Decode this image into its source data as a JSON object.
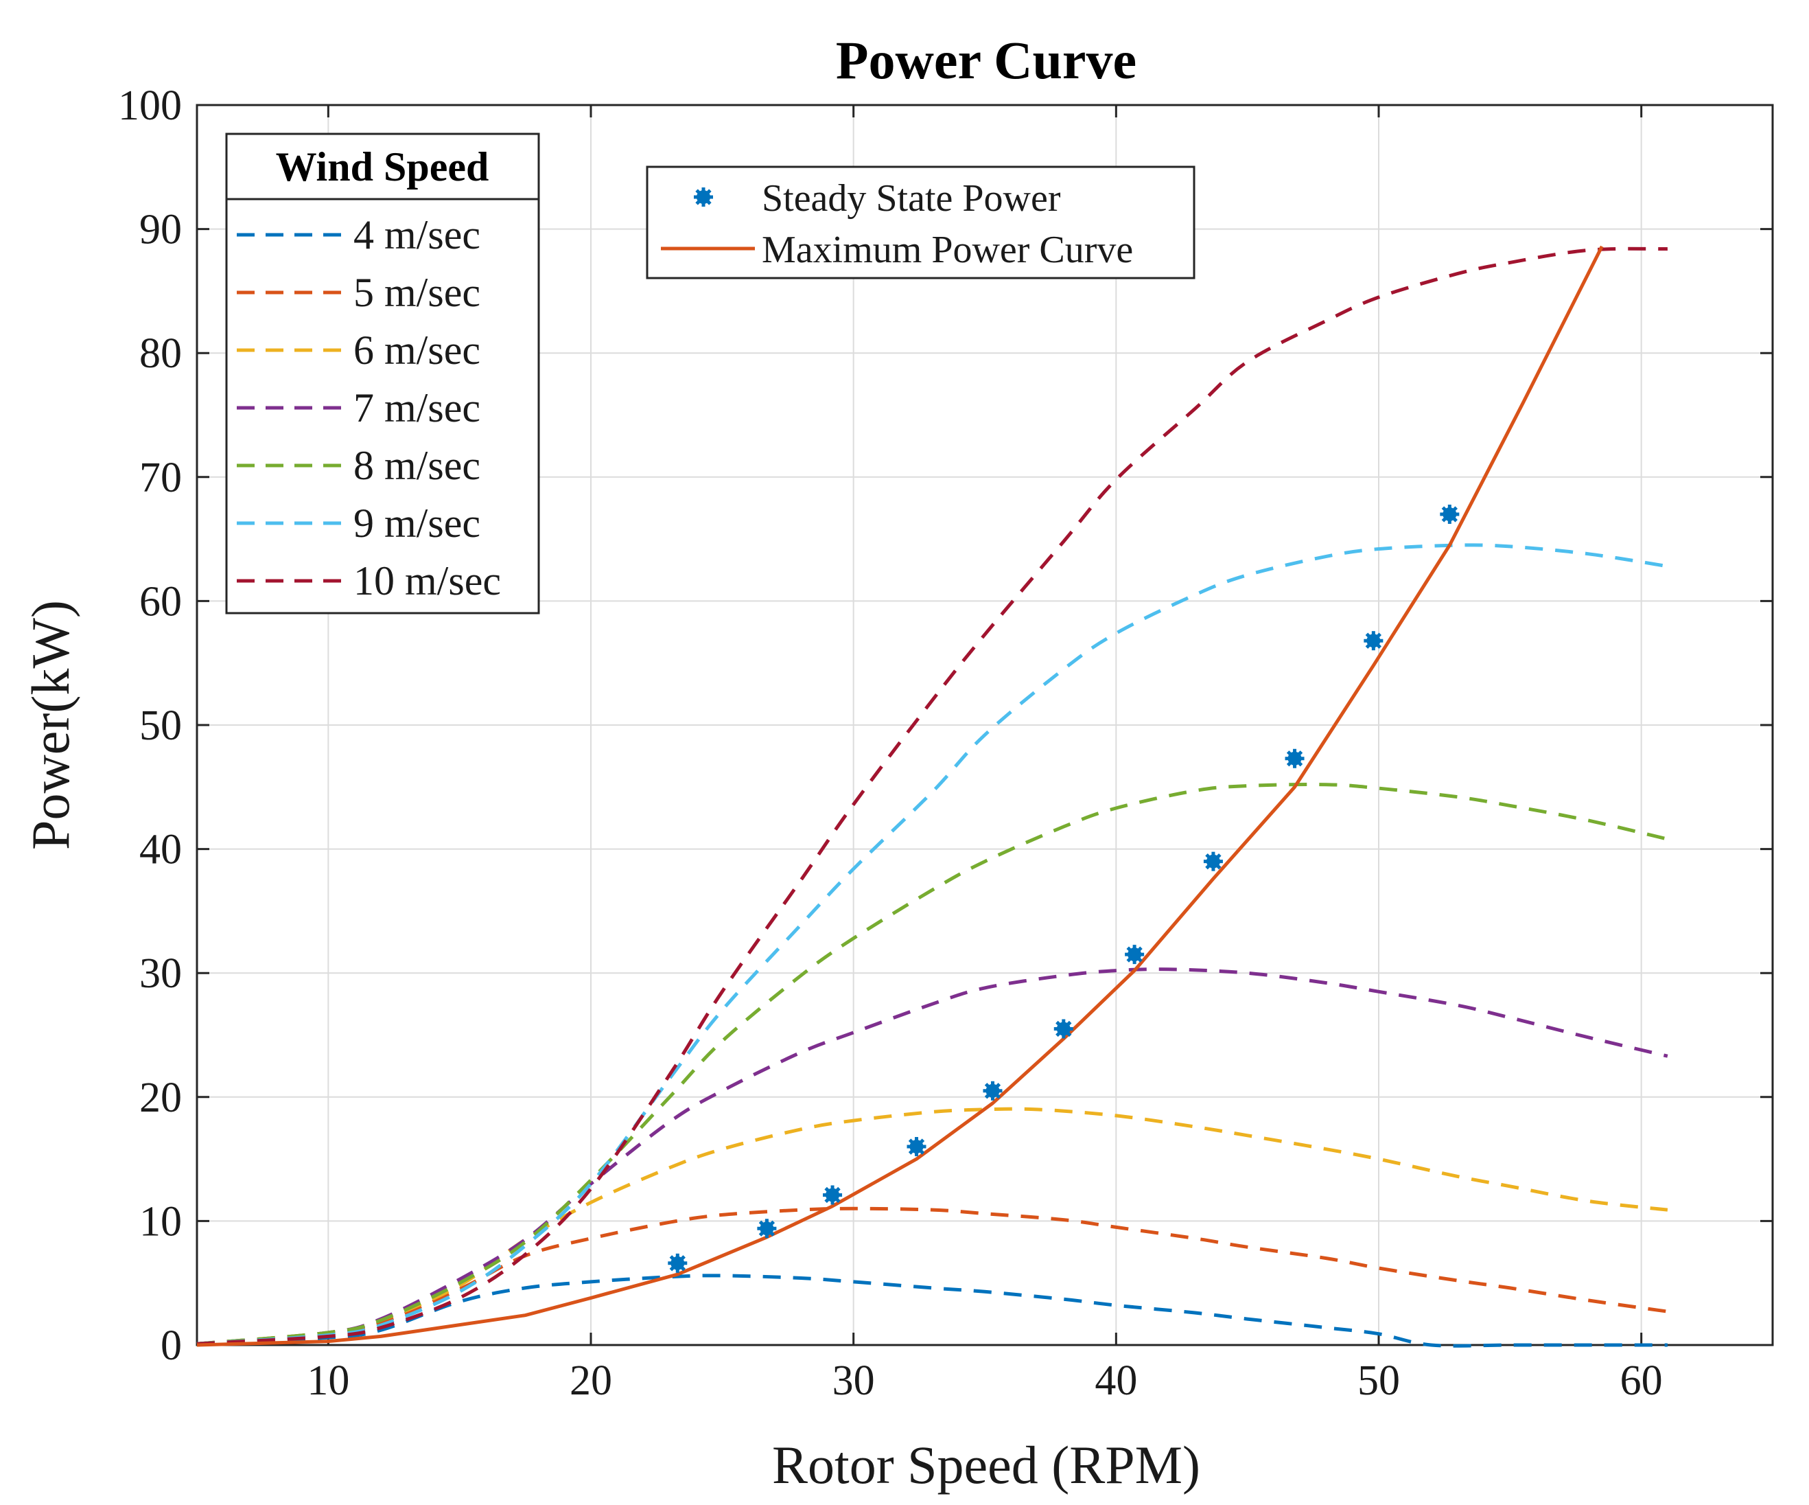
{
  "chart_data": {
    "type": "line",
    "title": "Power Curve",
    "xlabel": "Rotor Speed (RPM)",
    "ylabel": "Power(kW)",
    "xlim": [
      5,
      65
    ],
    "ylim": [
      0,
      100
    ],
    "xticks": [
      10,
      20,
      30,
      40,
      50,
      60
    ],
    "yticks": [
      0,
      10,
      20,
      30,
      40,
      50,
      60,
      70,
      80,
      90,
      100
    ],
    "grid": true,
    "legend_wind": {
      "title": "Wind Speed",
      "placement": "top-left"
    },
    "legend_power": {
      "placement": "top-center",
      "entries": [
        "Steady State Power",
        "Maximum Power Curve"
      ]
    },
    "series": [
      {
        "name": "4 m/sec",
        "color": "#0072BD",
        "style": "dashed",
        "x": [
          5,
          10,
          12,
          15,
          17.5,
          20,
          23,
          25,
          28,
          30,
          33,
          35,
          38,
          40,
          43,
          45,
          48,
          50,
          52,
          55,
          58,
          61
        ],
        "y": [
          0.1,
          0.6,
          1.2,
          3.5,
          4.6,
          5.1,
          5.5,
          5.6,
          5.4,
          5.1,
          4.6,
          4.3,
          3.7,
          3.2,
          2.6,
          2.1,
          1.4,
          0.9,
          0,
          0,
          0,
          0
        ]
      },
      {
        "name": "5 m/sec",
        "color": "#D95319",
        "style": "dashed",
        "x": [
          5,
          10,
          12,
          15,
          17.5,
          20,
          23,
          25,
          28,
          30,
          33,
          35,
          38,
          40,
          43,
          45,
          48,
          50,
          53,
          55,
          58,
          61
        ],
        "y": [
          0.1,
          0.9,
          1.8,
          4.5,
          7.2,
          8.6,
          9.9,
          10.5,
          10.9,
          11.0,
          10.9,
          10.6,
          10.1,
          9.5,
          8.6,
          7.9,
          7.0,
          6.2,
          5.2,
          4.6,
          3.6,
          2.7
        ]
      },
      {
        "name": "6 m/sec",
        "color": "#EDB120",
        "style": "dashed",
        "x": [
          5,
          10,
          12,
          15,
          17.5,
          20,
          23,
          25,
          28,
          30,
          33,
          35,
          37,
          40,
          43,
          45,
          48,
          50,
          53,
          55,
          58,
          61
        ],
        "y": [
          0.1,
          1.0,
          2.0,
          4.8,
          8.5,
          11.5,
          14.3,
          15.8,
          17.4,
          18.1,
          18.8,
          19.0,
          19.0,
          18.5,
          17.6,
          16.9,
          15.8,
          15.0,
          13.6,
          12.8,
          11.6,
          10.9
        ]
      },
      {
        "name": "7 m/sec",
        "color": "#7E2F8E",
        "style": "dashed",
        "x": [
          5,
          10,
          12,
          15,
          17.5,
          20,
          23,
          25,
          28,
          30,
          33,
          35,
          38,
          40,
          42,
          45,
          48,
          50,
          53,
          55,
          58,
          61
        ],
        "y": [
          0.1,
          1.0,
          2.1,
          5.3,
          8.5,
          13.0,
          18.0,
          20.5,
          23.6,
          25.2,
          27.5,
          28.8,
          29.8,
          30.2,
          30.3,
          30.0,
          29.2,
          28.5,
          27.4,
          26.4,
          24.8,
          23.3
        ]
      },
      {
        "name": "8 m/sec",
        "color": "#77AC30",
        "style": "dashed",
        "x": [
          5,
          10,
          12,
          15,
          17.5,
          20,
          23,
          25,
          28,
          30,
          33,
          35,
          38,
          40,
          43,
          45,
          48,
          50,
          53,
          55,
          58,
          61
        ],
        "y": [
          0.1,
          1.0,
          2.0,
          5.0,
          8.3,
          13.3,
          20.0,
          24.5,
          29.8,
          32.8,
          36.7,
          39.0,
          41.8,
          43.3,
          44.7,
          45.1,
          45.2,
          44.9,
          44.2,
          43.5,
          42.3,
          40.8
        ]
      },
      {
        "name": "9 m/sec",
        "color": "#4DBEEE",
        "style": "dashed",
        "x": [
          5,
          10,
          12,
          15,
          17.5,
          20,
          23,
          25,
          28,
          30,
          33,
          35,
          38,
          40,
          43,
          45,
          48,
          50,
          53,
          55,
          58,
          61
        ],
        "y": [
          0.1,
          0.8,
          1.6,
          4.3,
          8.0,
          13.0,
          21.5,
          27.0,
          33.9,
          38.4,
          44.6,
          49.2,
          54.5,
          57.4,
          60.5,
          62.1,
          63.6,
          64.2,
          64.5,
          64.4,
          63.8,
          62.8
        ]
      },
      {
        "name": "10 m/sec",
        "color": "#A2142F",
        "style": "dashed",
        "x": [
          5,
          10,
          12,
          15,
          17.5,
          20,
          23,
          25,
          28,
          30,
          33,
          35,
          38,
          40,
          43,
          45,
          48,
          50,
          53,
          55,
          58,
          61
        ],
        "y": [
          0.1,
          0.7,
          1.4,
          3.8,
          7.3,
          12.6,
          21.8,
          28.5,
          37.5,
          43.6,
          52.0,
          57.3,
          64.8,
          69.8,
          75.5,
          79.3,
          82.6,
          84.5,
          86.4,
          87.3,
          88.3,
          88.4
        ]
      }
    ],
    "steady_state_power": {
      "name": "Steady State Power",
      "color": "#0072BD",
      "x": [
        23.3,
        26.7,
        29.2,
        32.4,
        35.3,
        38.0,
        40.7,
        43.7,
        46.8,
        49.8,
        52.7
      ],
      "y": [
        6.6,
        9.4,
        12.1,
        16.0,
        20.5,
        25.5,
        31.5,
        39.0,
        47.3,
        56.8,
        67.0
      ]
    },
    "maximum_power_curve": {
      "name": "Maximum Power Curve",
      "color": "#D95319",
      "x": [
        5,
        10,
        12,
        17.5,
        20,
        23.3,
        26.7,
        29.2,
        32.4,
        35.3,
        38.0,
        40.7,
        43.7,
        46.8,
        49.8,
        52.7,
        55.5,
        58.5
      ],
      "y": [
        0,
        0.3,
        0.7,
        2.4,
        3.8,
        5.7,
        8.7,
        11.2,
        15.0,
        19.5,
        24.7,
        30.2,
        37.6,
        45.0,
        54.8,
        64.5,
        76.0,
        88.6
      ]
    }
  }
}
